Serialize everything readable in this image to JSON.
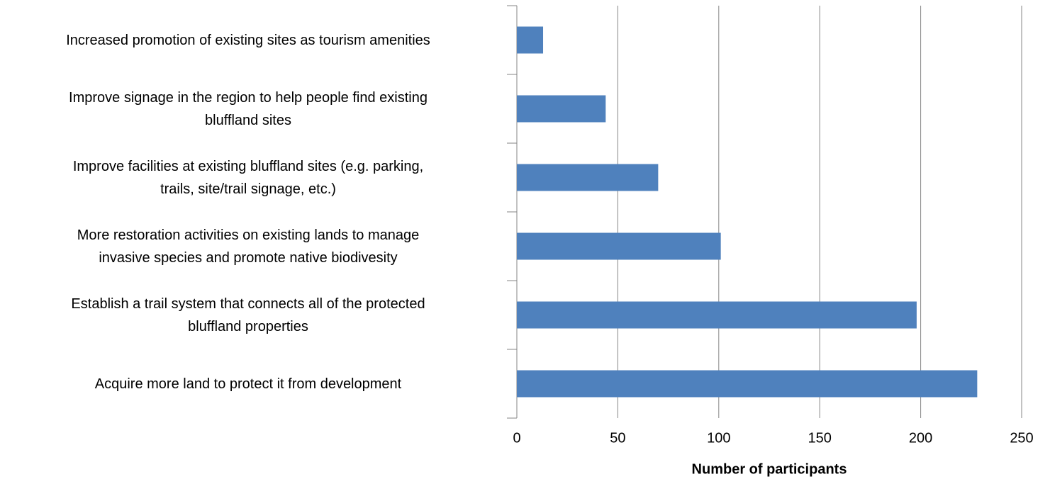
{
  "chart_data": {
    "type": "bar",
    "orientation": "horizontal",
    "categories": [
      "Increased promotion of existing sites as tourism amenities",
      "Improve signage in the region to help people find existing\nbluffland sites",
      "Improve facilities at existing bluffland sites (e.g. parking,\ntrails, site/trail signage, etc.)",
      "More restoration activities on existing lands to manage\ninvasive species and promote native biodivesity",
      "Establish a trail system that connects all of the protected\nbluffland properties",
      "Acquire more land to protect it from development"
    ],
    "values": [
      13,
      44,
      70,
      101,
      198,
      228
    ],
    "color": "#4f81bd",
    "xlabel": "Number of participants",
    "xlim": [
      0,
      250
    ],
    "xticks": [
      0,
      50,
      100,
      150,
      200,
      250
    ],
    "grid": true
  }
}
